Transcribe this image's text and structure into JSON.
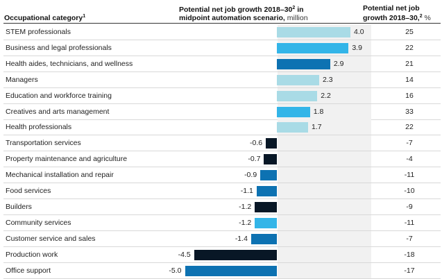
{
  "header": {
    "category": "Occupational category",
    "category_note": "1",
    "growth_title_a": "Potential net job growth 2018–30",
    "growth_note": "2",
    "growth_title_b": " in",
    "growth_title_c": "midpoint automation scenario,",
    "growth_unit": " million",
    "pct_title_a": "Potential net job",
    "pct_title_b": "growth 2018–30,",
    "pct_note": "2",
    "pct_unit": " %"
  },
  "colors": {
    "light_blue": "#a9dbe6",
    "mid_blue": "#33b5e8",
    "dark_blue": "#0d72b2",
    "black": "#081726",
    "band": "#f1f1f1"
  },
  "chart_data": {
    "type": "bar",
    "orientation": "horizontal",
    "title": "Potential net job growth 2018–30 in midpoint automation scenario, million",
    "categories": [
      "STEM professionals",
      "Business and legal professionals",
      "Health aides, technicians, and wellness",
      "Managers",
      "Education and workforce training",
      "Creatives and arts management",
      "Health professionals",
      "Transportation services",
      "Property maintenance and agriculture",
      "Mechanical installation and repair",
      "Food services",
      "Builders",
      "Community services",
      "Customer service and sales",
      "Production work",
      "Office support"
    ],
    "values": [
      4.0,
      3.9,
      2.9,
      2.3,
      2.2,
      1.8,
      1.7,
      -0.6,
      -0.7,
      -0.9,
      -1.1,
      -1.2,
      -1.2,
      -1.4,
      -4.5,
      -5.0
    ],
    "value_labels": [
      "4.0",
      "3.9",
      "2.9",
      "2.3",
      "2.2",
      "1.8",
      "1.7",
      "-0.6",
      "-0.7",
      "-0.9",
      "-1.1",
      "-1.2",
      "-1.2",
      "-1.4",
      "-4.5",
      "-5.0"
    ],
    "bar_colors": [
      "light_blue",
      "mid_blue",
      "dark_blue",
      "light_blue",
      "light_blue",
      "mid_blue",
      "light_blue",
      "black",
      "black",
      "dark_blue",
      "dark_blue",
      "black",
      "mid_blue",
      "dark_blue",
      "black",
      "dark_blue"
    ],
    "growth_pct": [
      "25",
      "22",
      "21",
      "14",
      "16",
      "33",
      "22",
      "-7",
      "-4",
      "-11",
      "-10",
      "-9",
      "-11",
      "-7",
      "-18",
      "-17"
    ],
    "xlim": [
      -5.0,
      4.0
    ]
  }
}
